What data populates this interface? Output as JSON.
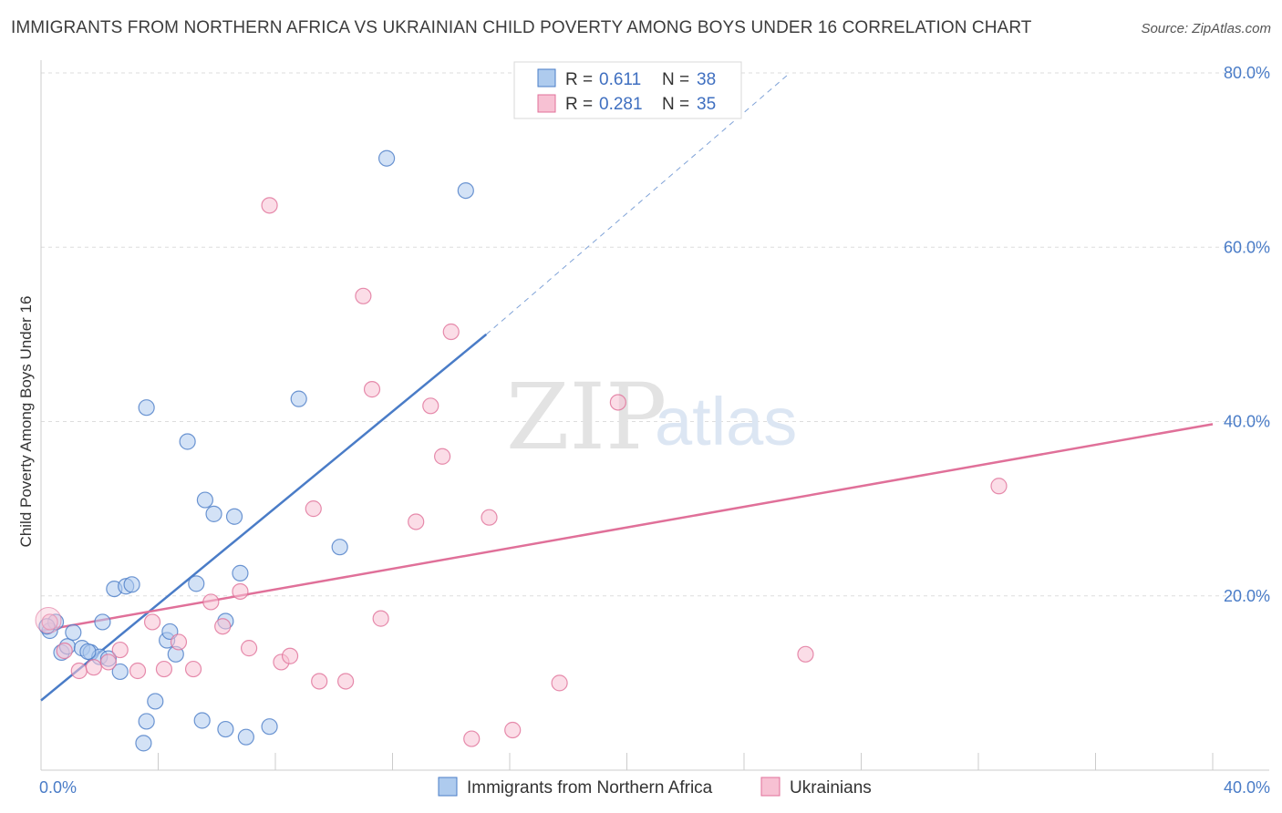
{
  "title": "IMMIGRANTS FROM NORTHERN AFRICA VS UKRAINIAN CHILD POVERTY AMONG BOYS UNDER 16 CORRELATION CHART",
  "source": "Source: ZipAtlas.com",
  "watermark": {
    "zip": "ZIP",
    "atlas": "atlas"
  },
  "colors": {
    "blue": "#4a7cc7",
    "blue_fill": "#aecbee",
    "pink": "#e07099",
    "pink_fill": "#f7c1d3",
    "grid": "#dddddd"
  },
  "legend": {
    "rows": [
      {
        "r_label": "R = ",
        "r_value": "0.611",
        "n_label": "N = ",
        "n_value": "38"
      },
      {
        "r_label": "R = ",
        "r_value": "0.281",
        "n_label": "N = ",
        "n_value": "35"
      }
    ]
  },
  "chart_data": {
    "type": "scatter",
    "title": "IMMIGRANTS FROM NORTHERN AFRICA VS UKRAINIAN CHILD POVERTY AMONG BOYS UNDER 16 CORRELATION CHART",
    "xlabel": "",
    "ylabel": "Child Poverty Among Boys Under 16",
    "xlim": [
      0,
      40
    ],
    "ylim": [
      0,
      80
    ],
    "x_tick_labels": [
      "0.0%",
      "40.0%"
    ],
    "y_ticks": [
      20,
      40,
      60,
      80
    ],
    "y_tick_labels": [
      "20.0%",
      "40.0%",
      "60.0%",
      "80.0%"
    ],
    "grid": true,
    "series": [
      {
        "name": "Immigrants from Northern Africa",
        "color": "#4a7cc7",
        "points": [
          [
            0.3,
            16.0
          ],
          [
            0.5,
            17.0
          ],
          [
            0.7,
            13.5
          ],
          [
            0.9,
            14.2
          ],
          [
            1.1,
            15.8
          ],
          [
            1.4,
            14.0
          ],
          [
            1.7,
            13.5
          ],
          [
            2.0,
            13.0
          ],
          [
            2.1,
            17.0
          ],
          [
            2.3,
            12.8
          ],
          [
            2.5,
            20.8
          ],
          [
            2.7,
            11.3
          ],
          [
            2.9,
            21.1
          ],
          [
            3.1,
            21.3
          ],
          [
            3.5,
            3.1
          ],
          [
            3.6,
            5.6
          ],
          [
            3.6,
            41.6
          ],
          [
            3.9,
            7.9
          ],
          [
            4.3,
            14.9
          ],
          [
            4.4,
            15.9
          ],
          [
            4.6,
            13.3
          ],
          [
            5.0,
            37.7
          ],
          [
            5.3,
            21.4
          ],
          [
            5.5,
            5.7
          ],
          [
            5.6,
            31.0
          ],
          [
            5.9,
            29.4
          ],
          [
            6.3,
            4.7
          ],
          [
            6.3,
            17.1
          ],
          [
            6.6,
            29.1
          ],
          [
            6.8,
            22.6
          ],
          [
            7.0,
            3.8
          ],
          [
            7.8,
            5.0
          ],
          [
            8.8,
            42.6
          ],
          [
            10.2,
            25.6
          ],
          [
            11.8,
            70.2
          ],
          [
            14.5,
            66.5
          ],
          [
            0.2,
            16.5
          ],
          [
            1.6,
            13.6
          ]
        ]
      },
      {
        "name": "Ukrainians",
        "color": "#e07099",
        "points": [
          [
            0.3,
            17.0
          ],
          [
            0.8,
            13.7
          ],
          [
            1.3,
            11.4
          ],
          [
            1.8,
            11.8
          ],
          [
            2.3,
            12.4
          ],
          [
            2.7,
            13.8
          ],
          [
            3.3,
            11.4
          ],
          [
            3.8,
            17.0
          ],
          [
            4.2,
            11.6
          ],
          [
            4.7,
            14.7
          ],
          [
            5.2,
            11.6
          ],
          [
            5.8,
            19.3
          ],
          [
            6.2,
            16.5
          ],
          [
            6.8,
            20.5
          ],
          [
            7.1,
            14.0
          ],
          [
            7.8,
            64.8
          ],
          [
            8.2,
            12.4
          ],
          [
            8.5,
            13.1
          ],
          [
            9.3,
            30.0
          ],
          [
            9.5,
            10.2
          ],
          [
            10.4,
            10.2
          ],
          [
            11.0,
            54.4
          ],
          [
            11.3,
            43.7
          ],
          [
            11.6,
            17.4
          ],
          [
            12.8,
            28.5
          ],
          [
            13.3,
            41.8
          ],
          [
            13.7,
            36.0
          ],
          [
            14.0,
            50.3
          ],
          [
            14.7,
            3.6
          ],
          [
            15.3,
            29.0
          ],
          [
            16.1,
            4.6
          ],
          [
            17.7,
            10.0
          ],
          [
            19.7,
            42.2
          ],
          [
            26.1,
            13.3
          ],
          [
            32.7,
            32.6
          ]
        ]
      }
    ],
    "trend_lines": [
      {
        "series": "Immigrants from Northern Africa",
        "color": "#4a7cc7",
        "solid": [
          [
            0,
            8.0
          ],
          [
            15.2,
            50.0
          ]
        ],
        "dashed": [
          [
            15.2,
            50.0
          ],
          [
            25.5,
            79.8
          ]
        ]
      },
      {
        "series": "Ukrainians",
        "color": "#e07099",
        "solid": [
          [
            0,
            16.0
          ],
          [
            40,
            39.7
          ]
        ]
      }
    ]
  },
  "bottom_legend": [
    {
      "label": "Immigrants from Northern Africa"
    },
    {
      "label": "Ukrainians"
    }
  ]
}
